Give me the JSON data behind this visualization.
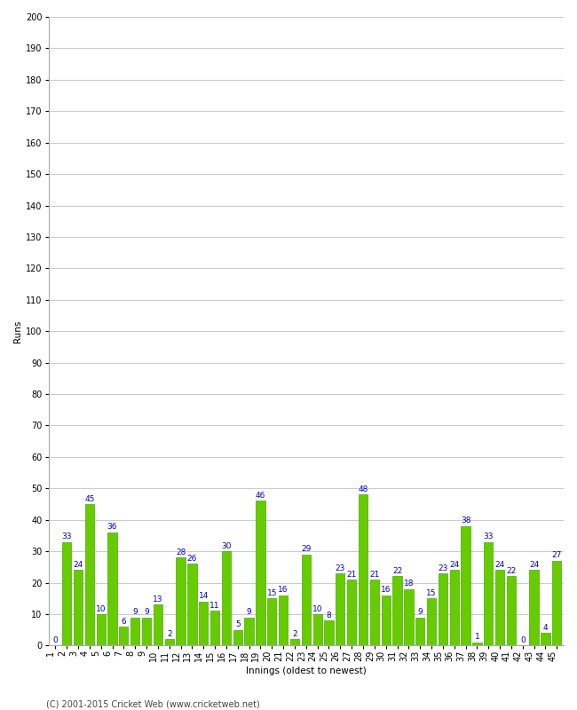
{
  "innings": [
    1,
    2,
    3,
    4,
    5,
    6,
    7,
    8,
    9,
    10,
    11,
    12,
    13,
    14,
    15,
    16,
    17,
    18,
    19,
    20,
    21,
    22,
    23,
    24,
    25,
    26,
    27,
    28,
    29,
    30,
    31,
    32,
    33,
    34,
    35,
    36,
    37,
    38,
    39,
    40,
    41,
    42,
    43,
    44,
    45
  ],
  "runs": [
    0,
    33,
    24,
    45,
    10,
    36,
    6,
    9,
    9,
    13,
    2,
    28,
    26,
    14,
    11,
    30,
    5,
    9,
    46,
    15,
    16,
    2,
    29,
    10,
    8,
    23,
    21,
    48,
    21,
    16,
    22,
    18,
    9,
    15,
    23,
    24,
    38,
    1,
    33,
    24,
    22,
    0,
    24,
    4,
    27
  ],
  "bar_color": "#66cc00",
  "bar_edge_color": "#44aa00",
  "label_color": "#0000cc",
  "background_color": "#ffffff",
  "grid_color": "#cccccc",
  "ylabel": "Runs",
  "xlabel": "Innings (oldest to newest)",
  "footer": "(C) 2001-2015 Cricket Web (www.cricketweb.net)",
  "ylim": [
    0,
    200
  ],
  "yticks": [
    0,
    10,
    20,
    30,
    40,
    50,
    60,
    70,
    80,
    90,
    100,
    110,
    120,
    130,
    140,
    150,
    160,
    170,
    180,
    190,
    200
  ],
  "label_fontsize": 6.5,
  "axis_fontsize": 7.5,
  "tick_fontsize": 7,
  "footer_fontsize": 7,
  "xtick_rotation": 90
}
